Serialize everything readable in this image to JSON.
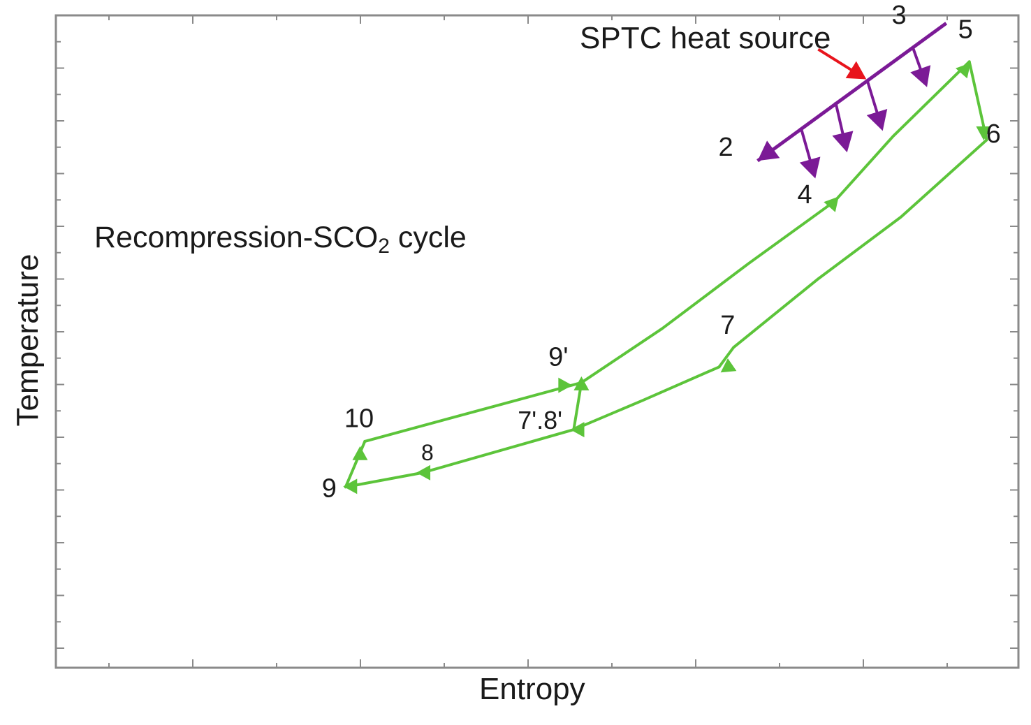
{
  "chart_data": {
    "type": "line",
    "title": "",
    "xlabel": "Entropy",
    "ylabel": "Temperature",
    "xlim": [
      0,
      1
    ],
    "ylim": [
      0,
      1
    ],
    "x_ticks_labeled": false,
    "y_ticks_labeled": false,
    "grid": false,
    "legend": "none",
    "annotations": {
      "cycle_label_main": "Recompression-SCO",
      "cycle_label_sub": "2",
      "cycle_label_tail": " cycle",
      "heat_source_label": "SPTC heat source"
    },
    "colors": {
      "cycle": "#5cc43a",
      "heat_source": "#7b1a96",
      "heat_input_arrow": "#e8141c",
      "axis": "#8a8a8a",
      "text": "#1a1a1a"
    },
    "series": [
      {
        "name": "Recompression-SCO2 cycle",
        "color": "#5cc43a",
        "closed": false,
        "points": [
          {
            "x": 0.809,
            "y": 0.715,
            "label": "4"
          },
          {
            "x": 0.87,
            "y": 0.815
          },
          {
            "x": 0.949,
            "y": 0.929,
            "label": "5"
          },
          {
            "x": 0.967,
            "y": 0.809,
            "label": "6"
          },
          {
            "x": 0.878,
            "y": 0.691
          },
          {
            "x": 0.791,
            "y": 0.595
          },
          {
            "x": 0.704,
            "y": 0.491
          },
          {
            "x": 0.689,
            "y": 0.461,
            "label": "7"
          },
          {
            "x": 0.61,
            "y": 0.41
          },
          {
            "x": 0.538,
            "y": 0.365,
            "label": "7'.8'"
          },
          {
            "x": 0.381,
            "y": 0.299,
            "label": "8"
          },
          {
            "x": 0.301,
            "y": 0.277,
            "label": "9"
          },
          {
            "x": 0.321,
            "y": 0.347,
            "label": "10"
          },
          {
            "x": 0.546,
            "y": 0.437,
            "label": "9'"
          },
          {
            "x": 0.63,
            "y": 0.52
          },
          {
            "x": 0.72,
            "y": 0.62
          },
          {
            "x": 0.809,
            "y": 0.715,
            "label": "4"
          }
        ],
        "extra_segments": [
          {
            "from": {
              "x": 0.546,
              "y": 0.437
            },
            "to": {
              "x": 0.538,
              "y": 0.365
            }
          }
        ],
        "arrow_marks": [
          {
            "x": 0.809,
            "y": 0.715,
            "dir": "up-right"
          },
          {
            "x": 0.946,
            "y": 0.92,
            "dir": "up-right"
          },
          {
            "x": 0.964,
            "y": 0.818,
            "dir": "down"
          },
          {
            "x": 0.696,
            "y": 0.458,
            "dir": "down-left"
          },
          {
            "x": 0.541,
            "y": 0.365,
            "dir": "left"
          },
          {
            "x": 0.381,
            "y": 0.299,
            "dir": "left"
          },
          {
            "x": 0.305,
            "y": 0.278,
            "dir": "left"
          },
          {
            "x": 0.316,
            "y": 0.33,
            "dir": "up"
          },
          {
            "x": 0.53,
            "y": 0.433,
            "dir": "right"
          },
          {
            "x": 0.546,
            "y": 0.437,
            "dir": "up"
          }
        ]
      },
      {
        "name": "SPTC heat source",
        "color": "#7b1a96",
        "points": [
          {
            "x": 0.925,
            "y": 0.988,
            "label": "3"
          },
          {
            "x": 0.729,
            "y": 0.777,
            "label": "2"
          }
        ],
        "heat_transfer_arrows": [
          {
            "from": {
              "x": 0.89,
              "y": 0.952
            },
            "to": {
              "x": 0.905,
              "y": 0.89
            }
          },
          {
            "from": {
              "x": 0.843,
              "y": 0.9
            },
            "to": {
              "x": 0.859,
              "y": 0.823
            }
          },
          {
            "from": {
              "x": 0.81,
              "y": 0.867
            },
            "to": {
              "x": 0.822,
              "y": 0.79
            }
          },
          {
            "from": {
              "x": 0.774,
              "y": 0.828
            },
            "to": {
              "x": 0.789,
              "y": 0.75
            }
          }
        ]
      }
    ],
    "heat_input_arrow": {
      "from": {
        "x": 0.792,
        "y": 0.948
      },
      "to": {
        "x": 0.842,
        "y": 0.902
      }
    },
    "point_labels": [
      {
        "text": "3",
        "x": 0.876,
        "y": 0.987
      },
      {
        "text": "5",
        "x": 0.945,
        "y": 0.965
      },
      {
        "text": "6",
        "x": 0.974,
        "y": 0.805
      },
      {
        "text": "2",
        "x": 0.696,
        "y": 0.785
      },
      {
        "text": "4",
        "x": 0.778,
        "y": 0.712
      },
      {
        "text": "7",
        "x": 0.698,
        "y": 0.512
      },
      {
        "text": "9'",
        "x": 0.522,
        "y": 0.463
      },
      {
        "text": "7'.8'",
        "x": 0.503,
        "y": 0.366
      },
      {
        "text": "10",
        "x": 0.315,
        "y": 0.369
      },
      {
        "text": "8",
        "x": 0.386,
        "y": 0.318
      },
      {
        "text": "9",
        "x": 0.284,
        "y": 0.262
      }
    ]
  }
}
